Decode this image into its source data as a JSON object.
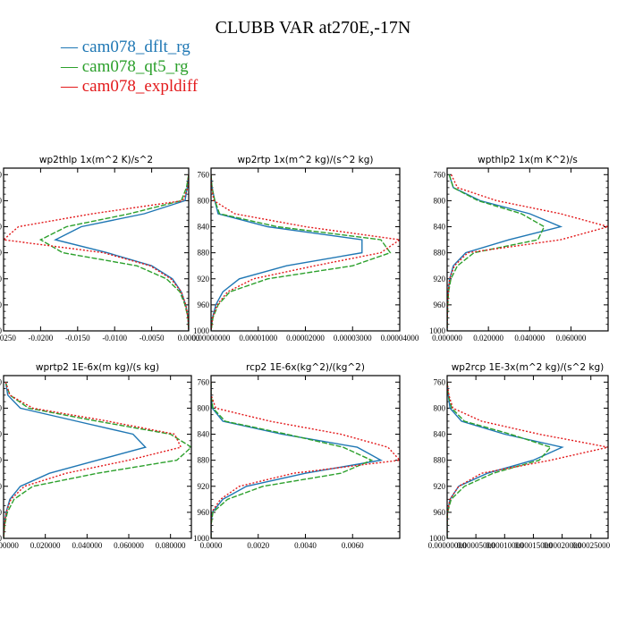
{
  "title": "CLUBB VAR at270E,-17N",
  "series_names": [
    "cam078_dflt_rg",
    "cam078_qt5_rg",
    "cam078_expldiff"
  ],
  "colors": {
    "cam078_dflt_rg": "#1f77b4",
    "cam078_qt5_rg": "#2ca02c",
    "cam078_expldiff": "#e31a1c"
  },
  "chart_data": [
    {
      "type": "line",
      "title": "wp2thlp   1x(m^2 K)/s^2",
      "ylim": [
        1000,
        750
      ],
      "xlim": [
        -0.025,
        0.0
      ],
      "y_ticks": [
        760,
        800,
        840,
        880,
        920,
        960,
        1000
      ],
      "x_ticks": [
        "-0.0250",
        "-0.0200",
        "-0.0150",
        "-0.0100",
        "-0.0050",
        "0.0000"
      ],
      "x_tick_values": [
        -0.025,
        -0.02,
        -0.015,
        -0.01,
        -0.005,
        0.0
      ],
      "y": [
        760,
        780,
        800,
        820,
        840,
        860,
        880,
        900,
        920,
        940,
        960,
        980,
        1000
      ],
      "series": [
        {
          "name": "cam078_dflt_rg",
          "values": [
            0.0,
            -0.0002,
            -0.0005,
            -0.006,
            -0.0145,
            -0.018,
            -0.011,
            -0.005,
            -0.0022,
            -0.001,
            -0.0004,
            -0.0001,
            0.0
          ]
        },
        {
          "name": "cam078_qt5_rg",
          "values": [
            0.0,
            -0.0003,
            -0.001,
            -0.008,
            -0.0165,
            -0.02,
            -0.017,
            -0.007,
            -0.003,
            -0.0012,
            -0.0005,
            -0.0001,
            0.0
          ]
        },
        {
          "name": "cam078_expldiff",
          "values": [
            0.0,
            -0.0001,
            -0.0008,
            -0.013,
            -0.023,
            -0.025,
            -0.0115,
            -0.0052,
            -0.0024,
            -0.001,
            -0.0004,
            -0.0001,
            0.0
          ]
        }
      ]
    },
    {
      "type": "line",
      "title": "wp2rtp   1x(m^2 kg)/(s^2 kg)",
      "ylim": [
        1000,
        750
      ],
      "xlim": [
        0.0,
        4e-05
      ],
      "y_ticks": [
        760,
        800,
        840,
        880,
        920,
        960,
        1000
      ],
      "x_ticks": [
        "0.00000000",
        "0.00001000",
        "0.00002000",
        "0.00003000",
        "0.00004000"
      ],
      "x_tick_values": [
        0.0,
        1e-05,
        2e-05,
        3e-05,
        4e-05
      ],
      "y": [
        760,
        780,
        800,
        820,
        840,
        860,
        880,
        900,
        920,
        940,
        960,
        980,
        1000
      ],
      "series": [
        {
          "name": "cam078_dflt_rg",
          "values": [
            0.0,
            2e-07,
            8e-07,
            1.5e-06,
            1.2e-05,
            3.2e-05,
            3.2e-05,
            1.6e-05,
            6e-06,
            2.5e-06,
            1e-06,
            3e-07,
            0.0
          ]
        },
        {
          "name": "cam078_qt5_rg",
          "values": [
            0.0,
            2e-07,
            8e-07,
            1.8e-06,
            1.4e-05,
            3.6e-05,
            3.8e-05,
            3e-05,
            1.2e-05,
            4e-06,
            1.5e-06,
            4e-07,
            0.0
          ]
        },
        {
          "name": "cam078_expldiff",
          "values": [
            0.0,
            1e-07,
            6e-07,
            5e-06,
            2e-05,
            4e-05,
            3.6e-05,
            2.2e-05,
            9e-06,
            3.5e-06,
            1.3e-06,
            3e-07,
            0.0
          ]
        }
      ]
    },
    {
      "type": "line",
      "title": "wpthlp2   1x(m K^2)/s",
      "ylim": [
        1000,
        750
      ],
      "xlim": [
        0.0,
        0.078
      ],
      "y_ticks": [
        760,
        800,
        840,
        880,
        920,
        960,
        1000
      ],
      "x_ticks": [
        "0.000000",
        "0.020000",
        "0.040000",
        "0.060000"
      ],
      "x_tick_values": [
        0.0,
        0.02,
        0.04,
        0.06
      ],
      "y": [
        760,
        780,
        800,
        820,
        840,
        860,
        880,
        900,
        920,
        940,
        960,
        980,
        1000
      ],
      "series": [
        {
          "name": "cam078_dflt_rg",
          "values": [
            0.001,
            0.003,
            0.016,
            0.04,
            0.055,
            0.03,
            0.009,
            0.003,
            0.0012,
            0.0005,
            0.0002,
            0.0001,
            0.0
          ]
        },
        {
          "name": "cam078_qt5_rg",
          "values": [
            0.001,
            0.003,
            0.015,
            0.036,
            0.047,
            0.044,
            0.013,
            0.005,
            0.0018,
            0.0007,
            0.0003,
            0.0001,
            0.0
          ]
        },
        {
          "name": "cam078_expldiff",
          "values": [
            0.002,
            0.005,
            0.024,
            0.055,
            0.078,
            0.055,
            0.01,
            0.0035,
            0.0012,
            0.0005,
            0.0002,
            0.0001,
            0.0
          ]
        }
      ]
    },
    {
      "type": "line",
      "title": "wprtp2   1E-6x(m kg)/(s kg)",
      "ylim": [
        1000,
        750
      ],
      "xlim": [
        0.0,
        0.09
      ],
      "y_ticks": [
        760,
        800,
        840,
        880,
        920,
        960,
        1000
      ],
      "x_ticks": [
        "0.000000",
        "0.020000",
        "0.040000",
        "0.060000",
        "0.080000"
      ],
      "x_tick_values": [
        0.0,
        0.02,
        0.04,
        0.06,
        0.08
      ],
      "y": [
        760,
        780,
        800,
        820,
        840,
        860,
        880,
        900,
        920,
        940,
        960,
        980,
        1000
      ],
      "series": [
        {
          "name": "cam078_dflt_rg",
          "values": [
            0.001,
            0.002,
            0.008,
            0.035,
            0.062,
            0.068,
            0.045,
            0.022,
            0.008,
            0.003,
            0.0012,
            0.0004,
            0.0
          ]
        },
        {
          "name": "cam078_qt5_rg",
          "values": [
            0.001,
            0.003,
            0.012,
            0.045,
            0.08,
            0.09,
            0.083,
            0.045,
            0.014,
            0.005,
            0.0018,
            0.0005,
            0.0
          ]
        },
        {
          "name": "cam078_expldiff",
          "values": [
            0.001,
            0.003,
            0.014,
            0.05,
            0.082,
            0.085,
            0.06,
            0.03,
            0.01,
            0.0035,
            0.0013,
            0.0004,
            0.0
          ]
        }
      ]
    },
    {
      "type": "line",
      "title": "rcp2   1E-6x(kg^2)/(kg^2)",
      "ylim": [
        1000,
        750
      ],
      "xlim": [
        0.0,
        0.008
      ],
      "y_ticks": [
        760,
        800,
        840,
        880,
        920,
        960,
        1000
      ],
      "x_ticks": [
        "0.0000",
        "0.0020",
        "0.0040",
        "0.0060"
      ],
      "x_tick_values": [
        0.0,
        0.002,
        0.004,
        0.006
      ],
      "y": [
        760,
        780,
        800,
        820,
        840,
        860,
        880,
        900,
        920,
        940,
        960,
        980,
        1000
      ],
      "series": [
        {
          "name": "cam078_dflt_rg",
          "values": [
            0.0,
            0.0,
            5e-05,
            0.0005,
            0.003,
            0.0062,
            0.0072,
            0.004,
            0.0015,
            0.0005,
            5e-05,
            0.0,
            0.0
          ]
        },
        {
          "name": "cam078_qt5_rg",
          "values": [
            0.0,
            0.0,
            8e-05,
            0.0006,
            0.0032,
            0.0056,
            0.0068,
            0.0055,
            0.0022,
            0.0007,
            8e-05,
            0.0,
            0.0
          ]
        },
        {
          "name": "cam078_expldiff",
          "values": [
            0.0,
            0.0,
            0.0002,
            0.0025,
            0.0055,
            0.0075,
            0.008,
            0.0035,
            0.0012,
            0.0004,
            2e-05,
            0.0,
            0.0
          ]
        }
      ]
    },
    {
      "type": "line",
      "title": "wp2rcp   1E-3x(m^2 kg)/(s^2 kg)",
      "ylim": [
        1000,
        750
      ],
      "xlim": [
        0.0,
        0.00028
      ],
      "y_ticks": [
        760,
        800,
        840,
        880,
        920,
        960,
        1000
      ],
      "x_ticks": [
        "0.00000000",
        "0.00005000",
        "0.00010000",
        "0.00015000",
        "0.00020000",
        "0.00025000"
      ],
      "x_tick_values": [
        0.0,
        5e-05,
        0.0001,
        0.00015,
        0.0002,
        0.00025
      ],
      "y": [
        760,
        780,
        800,
        820,
        840,
        860,
        880,
        900,
        920,
        940,
        960,
        980,
        1000
      ],
      "series": [
        {
          "name": "cam078_dflt_rg",
          "values": [
            0.0,
            2e-06,
            5e-06,
            2.5e-05,
            0.0001,
            0.0002,
            0.00015,
            7e-05,
            2e-05,
            5e-06,
            5e-07,
            0.0,
            0.0
          ]
        },
        {
          "name": "cam078_qt5_rg",
          "values": [
            0.0,
            2e-06,
            8e-06,
            3e-05,
            0.00011,
            0.00018,
            0.00016,
            8e-05,
            3e-05,
            7e-06,
            8e-07,
            0.0,
            0.0
          ]
        },
        {
          "name": "cam078_expldiff",
          "values": [
            0.0,
            3e-06,
            1e-05,
            6e-05,
            0.00016,
            0.00028,
            0.00018,
            6e-05,
            2e-05,
            5e-06,
            5e-07,
            0.0,
            0.0
          ]
        }
      ]
    }
  ]
}
